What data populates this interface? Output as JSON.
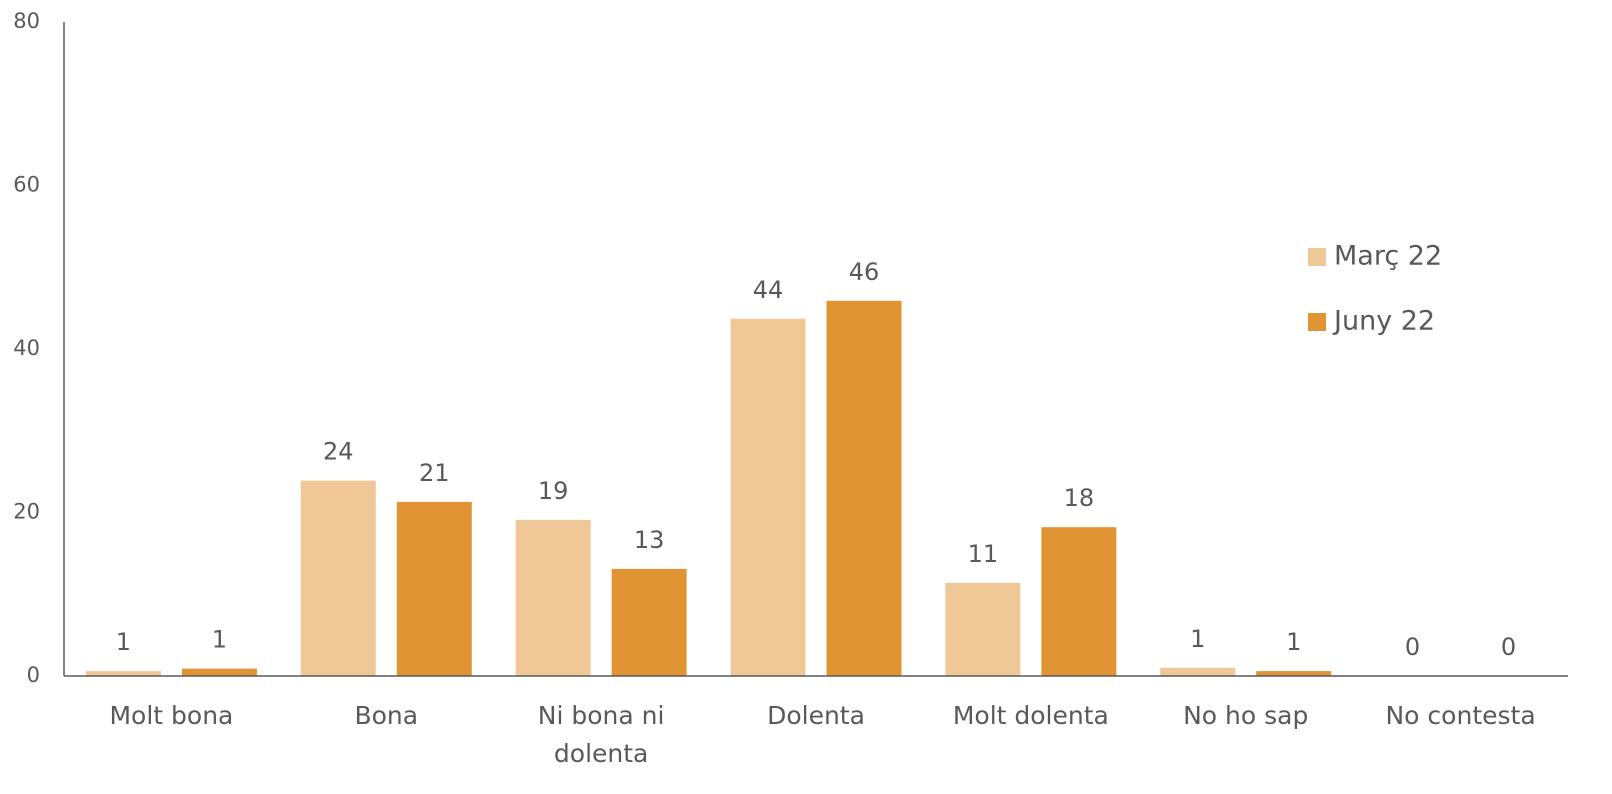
{
  "chart_data": {
    "type": "bar",
    "categories": [
      "Molt bona",
      "Bona",
      "Ni bona ni dolenta",
      "Dolenta",
      "Molt dolenta",
      "No ho sap",
      "No contesta"
    ],
    "series": [
      {
        "name": "Març 22",
        "color": "#f0c897",
        "values": [
          0.6,
          23.9,
          19.1,
          43.7,
          11.4,
          1.0,
          0
        ],
        "value_labels": [
          "1",
          "24",
          "19",
          "44",
          "11",
          "1",
          "0"
        ]
      },
      {
        "name": "Juny 22",
        "color": "#e09433",
        "values": [
          0.9,
          21.3,
          13.1,
          45.9,
          18.2,
          0.6,
          0
        ],
        "value_labels": [
          "1",
          "21",
          "13",
          "46",
          "18",
          "1",
          "0"
        ]
      }
    ],
    "ylim": [
      0,
      80
    ],
    "yticks": [
      0,
      20,
      40,
      60,
      80
    ],
    "grid": false,
    "legend": "right"
  }
}
